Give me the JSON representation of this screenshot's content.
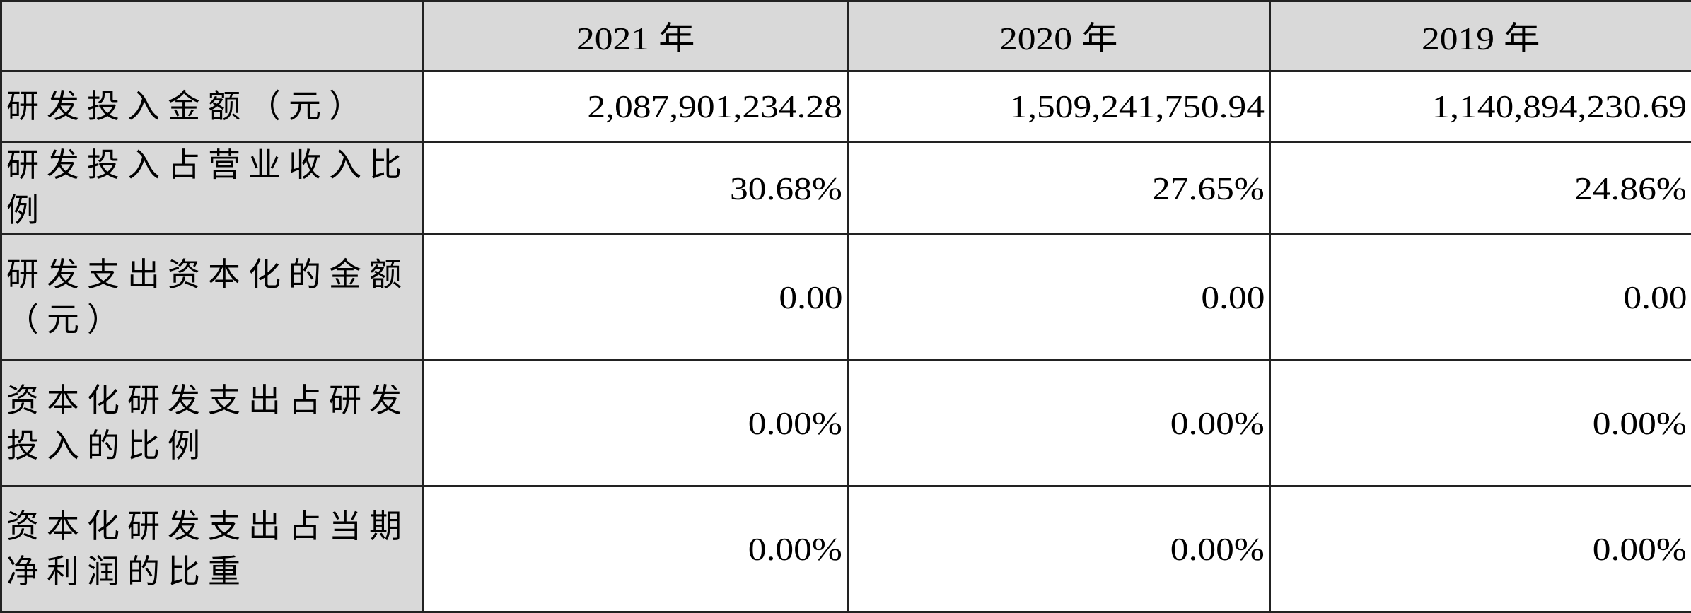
{
  "header": {
    "corner": "",
    "years": [
      "2021 年",
      "2020 年",
      "2019 年"
    ]
  },
  "rows": [
    {
      "label": "研发投入金额（元）",
      "values": [
        "2,087,901,234.28",
        "1,509,241,750.94",
        "1,140,894,230.69"
      ]
    },
    {
      "label": "研发投入占营业收入比例",
      "values": [
        "30.68%",
        "27.65%",
        "24.86%"
      ]
    },
    {
      "label": "研发支出资本化的金额（元）",
      "values": [
        "0.00",
        "0.00",
        "0.00"
      ]
    },
    {
      "label": "资本化研发支出占研发投入的比例",
      "values": [
        "0.00%",
        "0.00%",
        "0.00%"
      ]
    },
    {
      "label": "资本化研发支出占当期净利润的比重",
      "values": [
        "0.00%",
        "0.00%",
        "0.00%"
      ]
    }
  ]
}
